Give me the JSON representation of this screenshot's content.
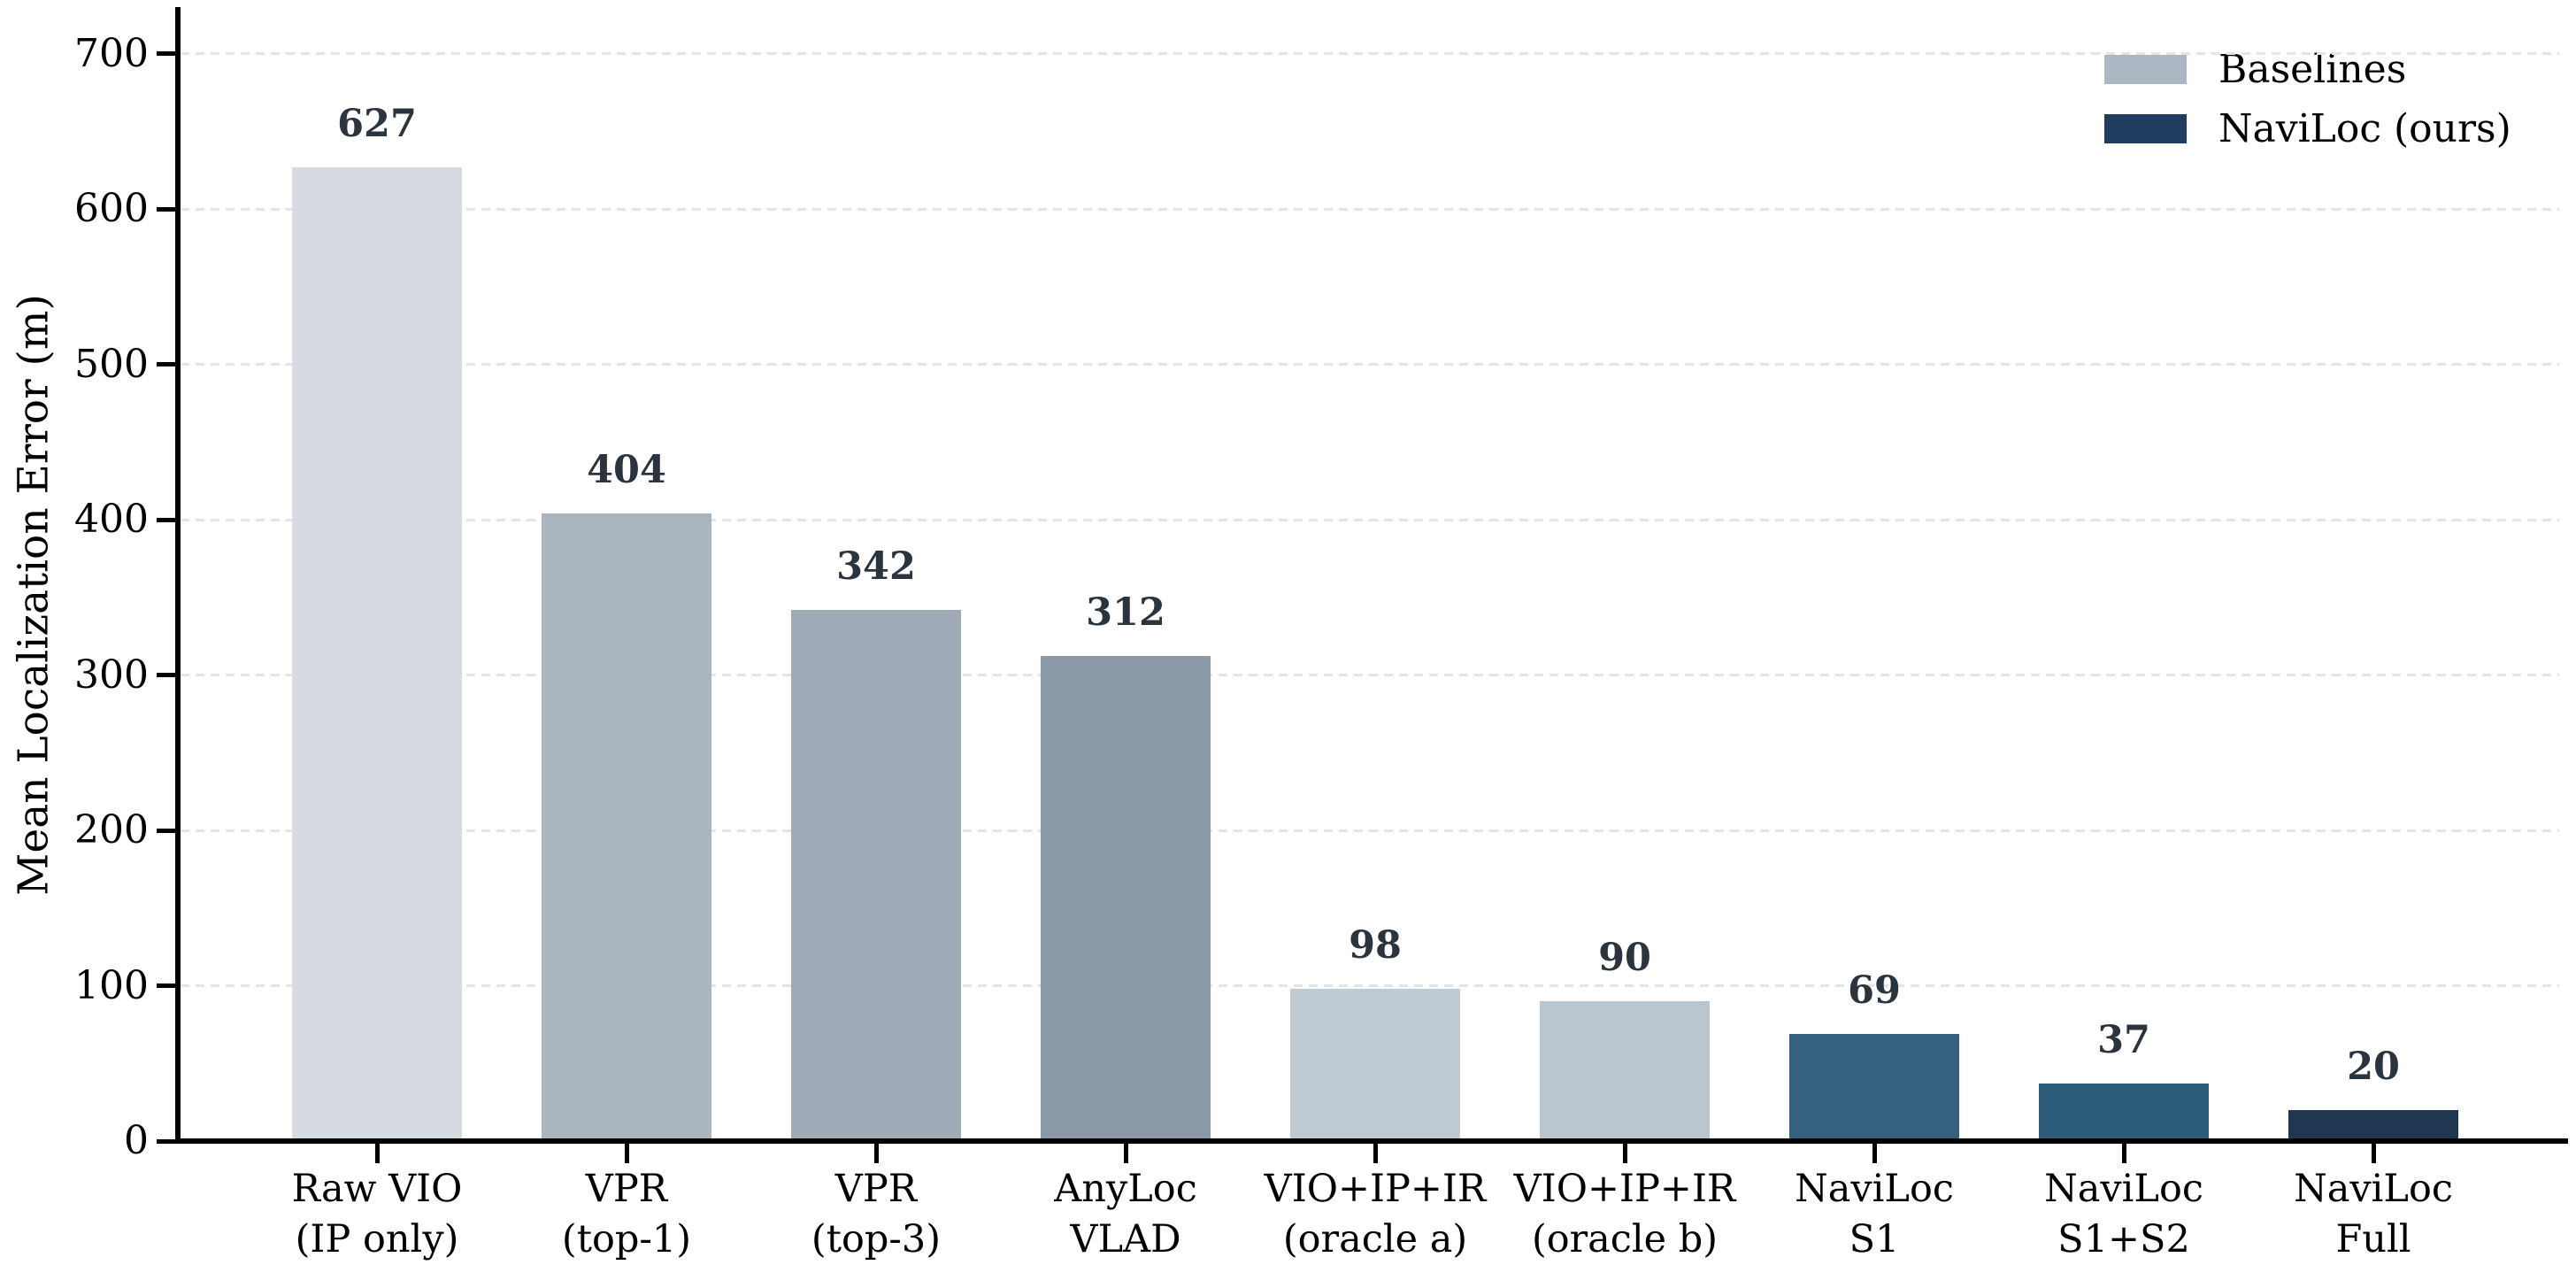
{
  "chart_data": {
    "type": "bar",
    "title": "",
    "xlabel": "",
    "ylabel": "Mean Localization Error (m)",
    "ylim": [
      0,
      700
    ],
    "yticks": [
      0,
      100,
      200,
      300,
      400,
      500,
      600,
      700
    ],
    "grid": {
      "axis": "y",
      "style": "dashed",
      "color": "#e4e4e4"
    },
    "legend_position": "upper-right",
    "categories": [
      "Raw VIO (IP only)",
      "VPR (top-1)",
      "VPR (top-3)",
      "AnyLoc VLAD",
      "VIO+IP+IR (oracle a)",
      "VIO+IP+IR (oracle b)",
      "NaviLoc S1",
      "NaviLoc S1+S2",
      "NaviLoc Full"
    ],
    "values": [
      627,
      404,
      342,
      312,
      98,
      90,
      69,
      37,
      20
    ],
    "bars": [
      {
        "category_lines": [
          "Raw VIO",
          "(IP only)"
        ],
        "value": 627,
        "color": "#d5dbe1",
        "group": "Baselines"
      },
      {
        "category_lines": [
          "VPR",
          "(top-1)"
        ],
        "value": 404,
        "color": "#aab5c0",
        "group": "Baselines"
      },
      {
        "category_lines": [
          "VPR",
          "(top-3)"
        ],
        "value": 342,
        "color": "#9fabb7",
        "group": "Baselines"
      },
      {
        "category_lines": [
          "AnyLoc",
          "VLAD"
        ],
        "value": 312,
        "color": "#8b99a8",
        "group": "Baselines"
      },
      {
        "category_lines": [
          "VIO+IP+IR",
          "(oracle a)"
        ],
        "value": 98,
        "color": "#c0cad3",
        "group": "Baselines"
      },
      {
        "category_lines": [
          "VIO+IP+IR",
          "(oracle b)"
        ],
        "value": 90,
        "color": "#bac5cf",
        "group": "Baselines"
      },
      {
        "category_lines": [
          "NaviLoc",
          "S1"
        ],
        "value": 69,
        "color": "#35617f",
        "group": "NaviLoc (ours)"
      },
      {
        "category_lines": [
          "NaviLoc",
          "S1+S2"
        ],
        "value": 37,
        "color": "#2e5c7b",
        "group": "NaviLoc (ours)"
      },
      {
        "category_lines": [
          "NaviLoc",
          "Full"
        ],
        "value": 20,
        "color": "#203751",
        "group": "NaviLoc (ours)"
      }
    ],
    "legend": {
      "entries": [
        {
          "label": "Baselines",
          "color": "#abb7c3"
        },
        {
          "label": "NaviLoc (ours)",
          "color": "#203c5e"
        }
      ]
    },
    "value_label_color": "#2a343e",
    "axis_color": "#000000"
  }
}
